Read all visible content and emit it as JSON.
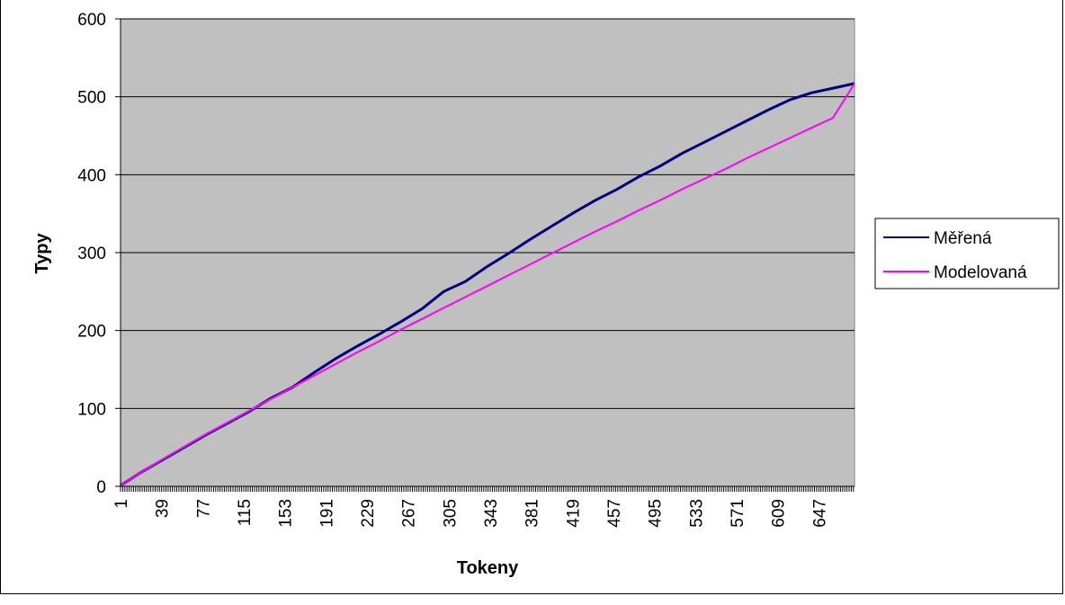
{
  "chart_data": {
    "type": "line",
    "title": "",
    "xlabel": "Tokeny",
    "ylabel": "Typy",
    "xlim": [
      1,
      680
    ],
    "ylim": [
      0,
      600
    ],
    "yticks": [
      0,
      100,
      200,
      300,
      400,
      500,
      600
    ],
    "x_tick_labels": [
      1,
      39,
      77,
      115,
      153,
      191,
      229,
      267,
      305,
      343,
      381,
      419,
      457,
      495,
      533,
      571,
      609,
      647
    ],
    "grid": "horizontal",
    "legend_position": "right",
    "plot_background": "#c0c0c0",
    "series": [
      {
        "name": "Měřená",
        "color": "#000080",
        "x": [
          1,
          20,
          40,
          60,
          80,
          100,
          120,
          140,
          160,
          180,
          200,
          220,
          240,
          260,
          280,
          300,
          320,
          340,
          360,
          380,
          400,
          420,
          440,
          460,
          480,
          500,
          520,
          540,
          560,
          580,
          600,
          620,
          640,
          660,
          680
        ],
        "y": [
          1,
          18,
          34,
          50,
          66,
          81,
          96,
          113,
          127,
          146,
          164,
          180,
          195,
          211,
          228,
          250,
          263,
          282,
          299,
          317,
          334,
          351,
          367,
          381,
          397,
          411,
          427,
          441,
          455,
          469,
          483,
          496,
          505,
          511,
          517
        ]
      },
      {
        "name": "Modelovaná",
        "color": "#ff00ff",
        "x": [
          1,
          20,
          40,
          60,
          80,
          100,
          120,
          140,
          160,
          180,
          200,
          220,
          240,
          260,
          280,
          300,
          320,
          340,
          360,
          380,
          400,
          420,
          440,
          460,
          480,
          500,
          520,
          540,
          560,
          580,
          600,
          620,
          640,
          660,
          680
        ],
        "y": [
          1,
          18,
          35,
          51,
          67,
          82,
          97,
          112,
          127,
          142,
          157,
          172,
          186,
          201,
          215,
          229,
          243,
          257,
          271,
          285,
          299,
          313,
          327,
          340,
          354,
          367,
          381,
          394,
          407,
          421,
          434,
          447,
          460,
          473,
          517
        ]
      }
    ]
  }
}
